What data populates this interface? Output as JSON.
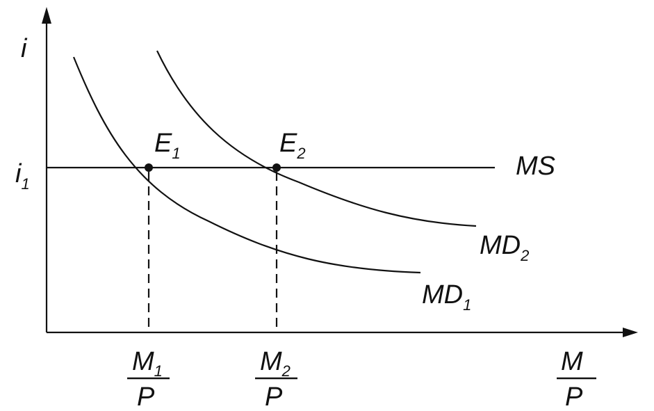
{
  "axes": {
    "y_label": "i",
    "x_label_numerator": "M",
    "x_label_denominator": "P"
  },
  "rate_label": {
    "main": "i",
    "sub": "1"
  },
  "curves": {
    "ms": "MS",
    "md1": {
      "main": "MD",
      "sub": "1"
    },
    "md2": {
      "main": "MD",
      "sub": "2"
    }
  },
  "points": {
    "e1": {
      "main": "E",
      "sub": "1"
    },
    "e2": {
      "main": "E",
      "sub": "2"
    }
  },
  "ticks": {
    "m1": {
      "main": "M",
      "sub": "1",
      "denominator": "P"
    },
    "m2": {
      "main": "M",
      "sub": "2",
      "denominator": "P"
    }
  }
}
